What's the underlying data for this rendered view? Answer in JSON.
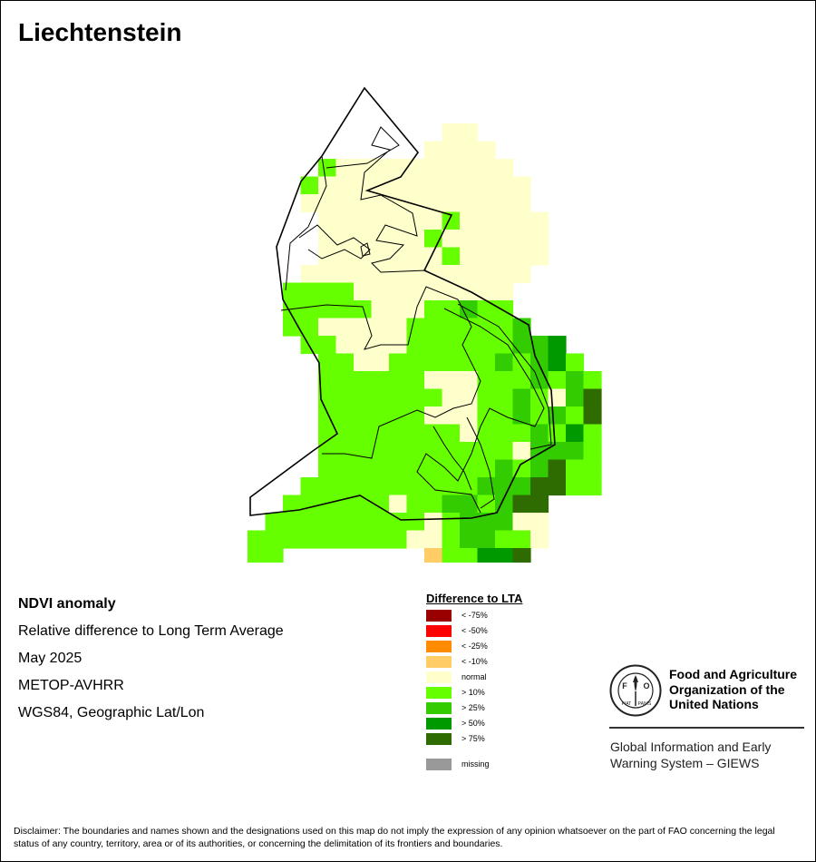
{
  "title": "Liechtenstein",
  "info": {
    "line1": "NDVI anomaly",
    "line2": "Relative difference to Long Term Average",
    "line3": "May 2025",
    "line4": "METOP-AVHRR",
    "line5": "WGS84, Geographic Lat/Lon"
  },
  "legend": {
    "title": "Difference to LTA",
    "items": [
      {
        "label": "< -75%",
        "color": "#990000"
      },
      {
        "label": "< -50%",
        "color": "#ff0000"
      },
      {
        "label": "< -25%",
        "color": "#ff8c00"
      },
      {
        "label": "< -10%",
        "color": "#ffcc66"
      },
      {
        "label": "normal",
        "color": "#ffffcc"
      },
      {
        "label": "> 10%",
        "color": "#66ff00"
      },
      {
        "label": "> 25%",
        "color": "#33cc00"
      },
      {
        "label": "> 50%",
        "color": "#009900"
      },
      {
        "label": "> 75%",
        "color": "#2e6b00"
      }
    ],
    "missing": {
      "label": "missing",
      "color": "#999999"
    }
  },
  "logo": {
    "org_name": "Food and Agriculture Organization of the United Nations",
    "seal_letters": [
      "F",
      "A",
      "O"
    ],
    "seal_motto": "FIAT PANIS",
    "giews": "Global Information and Early Warning System – GIEWS"
  },
  "disclaimer": "Disclaimer: The boundaries and names shown and the designations used on this map do not imply the expression of any opinion whatsoever on the part of FAO concerning the legal status of any country, territory, area or of its authorities, or concerning the delimitation of its frontiers and boundaries."
}
